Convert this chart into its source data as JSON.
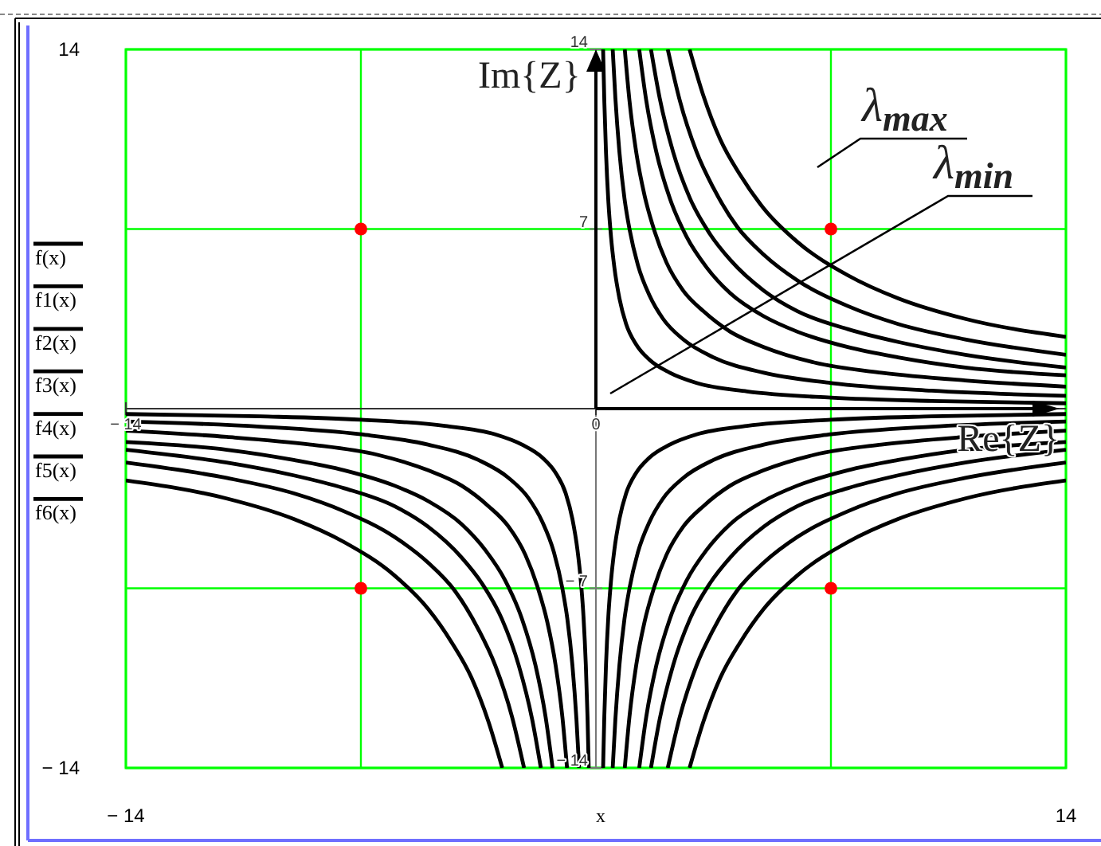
{
  "chart_data": {
    "type": "line",
    "xlabel": "x",
    "legend": "left",
    "grid": true,
    "xlim": [
      -14,
      14
    ],
    "ylim": [
      -14,
      14
    ],
    "xticks": [
      {
        "value": -14,
        "label": "− 14"
      },
      {
        "value": -7,
        "label": null
      },
      {
        "value": 7,
        "label": null
      },
      14
    ],
    "yticks": [
      {
        "value": -14,
        "label": "− 14"
      },
      {
        "value": -7,
        "label": null
      },
      {
        "value": 7,
        "label": null
      },
      14
    ],
    "x2lim": [
      -14,
      14
    ],
    "x2ticks": [
      {
        "value": -14,
        "label": "− 14"
      },
      0
    ],
    "y2lim": [
      -14,
      14
    ],
    "y2ticks": [
      {
        "value": -14,
        "label": "− 14"
      },
      {
        "value": -7,
        "label": "− 7"
      },
      7,
      14
    ],
    "annotations": [
      "Im{Z}",
      "Re{Z}",
      "λ$_{max}$",
      "λ$_{min}$"
    ],
    "series": [
      {
        "name": "f(x)",
        "color": "#000000",
        "x": [
          -14,
          -10,
          -7,
          -4.5,
          -3,
          -2.2,
          -1.6,
          -1.2,
          -0.9,
          -0.7,
          -0.55,
          -0.45,
          -0.37,
          -0.3,
          -0.25,
          -0.214,
          0,
          0.214,
          0.25,
          0.3,
          0.37,
          0.45,
          0.55,
          0.7,
          0.9,
          1.2,
          1.6,
          2.2,
          3,
          4.5,
          7,
          10,
          14
        ],
        "values": [
          -0.21,
          -0.3,
          -0.43,
          -0.67,
          -1,
          -1.4,
          -1.9,
          -2.5,
          -3.3,
          -4.3,
          -5.5,
          -6.7,
          -8.1,
          -10,
          -12,
          -14,
          null,
          14,
          12,
          10,
          8.1,
          6.7,
          5.5,
          4.3,
          3.3,
          2.5,
          1.9,
          1.4,
          1,
          0.67,
          0.43,
          0.3,
          0.21
        ]
      },
      {
        "name": "f1(x)",
        "color": "#000000",
        "x": [
          -14,
          -10,
          -7,
          -5,
          -3.5,
          -2.6,
          -2,
          -1.6,
          -1.25,
          -1,
          -0.85,
          -0.7,
          -0.58,
          -0.5,
          0,
          0.5,
          0.58,
          0.7,
          0.85,
          1,
          1.25,
          1.6,
          2,
          2.6,
          3.5,
          5,
          7,
          10,
          14
        ],
        "values": [
          -0.5,
          -0.7,
          -1,
          -1.4,
          -2,
          -2.7,
          -3.5,
          -4.4,
          -5.6,
          -7,
          -8.2,
          -10,
          -12.1,
          -14,
          null,
          14,
          12.1,
          10,
          8.2,
          7,
          5.6,
          4.4,
          3.5,
          2.7,
          2,
          1.4,
          1,
          0.7,
          0.5
        ]
      },
      {
        "name": "f2(x)",
        "color": "#000000",
        "x": [
          -14,
          -11,
          -8.5,
          -6.5,
          -5,
          -4,
          -3.2,
          -2.6,
          -2.1,
          -1.75,
          -1.45,
          -1.2,
          -1,
          -0.86,
          0,
          0.86,
          1,
          1.2,
          1.45,
          1.75,
          2.1,
          2.6,
          3.2,
          4,
          5,
          6.5,
          8.5,
          11,
          14
        ],
        "values": [
          -0.86,
          -1.1,
          -1.4,
          -1.8,
          -2.4,
          -3,
          -3.8,
          -4.6,
          -5.7,
          -6.9,
          -8.3,
          -10,
          -12,
          -14,
          null,
          14,
          12,
          10,
          8.3,
          6.9,
          5.7,
          4.6,
          3.8,
          3,
          2.4,
          1.8,
          1.4,
          1.1,
          0.86
        ]
      },
      {
        "name": "f3(x)",
        "color": "#000000",
        "x": [
          -14,
          -11,
          -9,
          -7.5,
          -6,
          -5,
          -4,
          -3.3,
          -2.7,
          -2.2,
          -1.8,
          -1.5,
          -1.29,
          0,
          1.29,
          1.5,
          1.8,
          2.2,
          2.7,
          3.3,
          4,
          5,
          6,
          7.5,
          9,
          11,
          14
        ],
        "values": [
          -1.3,
          -1.6,
          -2,
          -2.4,
          -3,
          -3.6,
          -4.5,
          -5.5,
          -6.7,
          -8.2,
          -10,
          -12,
          -14,
          null,
          14,
          12,
          10,
          8.2,
          6.7,
          5.5,
          4.5,
          3.6,
          3,
          2.4,
          2,
          1.6,
          1.3
        ]
      },
      {
        "name": "f4(x)",
        "color": "#000000",
        "x": [
          -14,
          -11,
          -9,
          -7.5,
          -6,
          -5,
          -4,
          -3.4,
          -2.8,
          -2.3,
          -1.9,
          -1.64,
          0,
          1.64,
          1.9,
          2.3,
          2.8,
          3.4,
          4,
          5,
          6,
          7.5,
          9,
          11,
          14
        ],
        "values": [
          -1.6,
          -2.1,
          -2.6,
          -3.1,
          -3.8,
          -4.6,
          -5.8,
          -6.8,
          -8.2,
          -10,
          -12.1,
          -14,
          null,
          14,
          12.1,
          10,
          8.2,
          6.8,
          5.8,
          4.6,
          3.8,
          3.1,
          2.6,
          2.1,
          1.6
        ]
      },
      {
        "name": "f5(x)",
        "color": "#000000",
        "x": [
          -14,
          -11,
          -9,
          -7.5,
          -6,
          -5,
          -4.2,
          -3.5,
          -3,
          -2.5,
          -2.14,
          0,
          2.14,
          2.5,
          3,
          3.5,
          4.2,
          5,
          6,
          7.5,
          9,
          11,
          14
        ],
        "values": [
          -2.1,
          -2.7,
          -3.3,
          -4,
          -5,
          -6,
          -7.1,
          -8.6,
          -10,
          -12,
          -14,
          null,
          14,
          12,
          10,
          8.6,
          7.1,
          6,
          5,
          4,
          3.3,
          2.7,
          2.1
        ]
      },
      {
        "name": "f6(x)",
        "color": "#000000",
        "x": [
          -14,
          -11,
          -9,
          -7.5,
          -6,
          -5,
          -4.3,
          -3.7,
          -3.2,
          -2.79,
          0,
          2.79,
          3.2,
          3.7,
          4.3,
          5,
          6,
          7.5,
          9,
          11,
          14
        ],
        "values": [
          -2.8,
          -3.5,
          -4.3,
          -5.2,
          -6.5,
          -7.8,
          -9.1,
          -10.5,
          -12.2,
          -14,
          null,
          14,
          12.2,
          10.5,
          9.1,
          7.8,
          6.5,
          5.2,
          4.3,
          3.5,
          2.8
        ]
      },
      {
        "color": "#000000",
        "x": [
          0.214,
          0.25,
          0.3,
          0.37,
          0.45,
          0.55,
          0.7,
          0.9,
          1.2,
          1.6,
          2.2,
          3,
          4.5,
          7,
          10,
          14
        ],
        "values": [
          -14,
          -12,
          -10,
          -8.1,
          -6.7,
          -5.5,
          -4.3,
          -3.3,
          -2.5,
          -1.9,
          -1.4,
          -1,
          -0.67,
          -0.43,
          -0.3,
          -0.21
        ]
      },
      {
        "color": "#000000",
        "x": [
          0.5,
          0.58,
          0.7,
          0.85,
          1,
          1.25,
          1.6,
          2,
          2.6,
          3.5,
          5,
          7,
          10,
          14
        ],
        "values": [
          -14,
          -12.1,
          -10,
          -8.2,
          -7,
          -5.6,
          -4.4,
          -3.5,
          -2.7,
          -2,
          -1.4,
          -1,
          -0.7,
          -0.5
        ]
      },
      {
        "color": "#000000",
        "x": [
          0.86,
          1,
          1.2,
          1.45,
          1.75,
          2.1,
          2.6,
          3.2,
          4,
          5,
          6.5,
          8.5,
          11,
          14
        ],
        "values": [
          -14,
          -12,
          -10,
          -8.3,
          -6.9,
          -5.7,
          -4.6,
          -3.8,
          -3,
          -2.4,
          -1.8,
          -1.4,
          -1.1,
          -0.86
        ]
      },
      {
        "color": "#000000",
        "x": [
          1.29,
          1.5,
          1.8,
          2.2,
          2.7,
          3.3,
          4,
          5,
          6,
          7.5,
          9,
          11,
          14
        ],
        "values": [
          -14,
          -12,
          -10,
          -8.2,
          -6.7,
          -5.5,
          -4.5,
          -3.6,
          -3,
          -2.4,
          -2,
          -1.6,
          -1.3
        ]
      },
      {
        "color": "#000000",
        "x": [
          1.64,
          1.9,
          2.3,
          2.8,
          3.4,
          4,
          5,
          6,
          7.5,
          9,
          11,
          14
        ],
        "values": [
          -14,
          -12.1,
          -10,
          -8.2,
          -6.8,
          -5.8,
          -4.6,
          -3.8,
          -3.1,
          -2.6,
          -2.1,
          -1.6
        ]
      },
      {
        "color": "#000000",
        "x": [
          2.14,
          2.5,
          3,
          3.5,
          4.2,
          5,
          6,
          7.5,
          9,
          11,
          14
        ],
        "values": [
          -14,
          -12,
          -10,
          -8.6,
          -7.1,
          -6,
          -5,
          -4,
          -3.3,
          -2.7,
          -2.1
        ]
      },
      {
        "color": "#000000",
        "x": [
          2.79,
          3.2,
          3.7,
          4.3,
          5,
          6,
          7.5,
          9,
          11,
          14
        ],
        "values": [
          -14,
          -12.2,
          -10.5,
          -9.1,
          -7.8,
          -6.5,
          -5.2,
          -4.3,
          -3.5,
          -2.8
        ]
      },
      {
        "type": "scatter",
        "color": "#ff0000",
        "marker": "circle",
        "x": [
          -7,
          7,
          -7,
          7
        ],
        "values": [
          7,
          7,
          -7,
          -7
        ]
      }
    ]
  }
}
